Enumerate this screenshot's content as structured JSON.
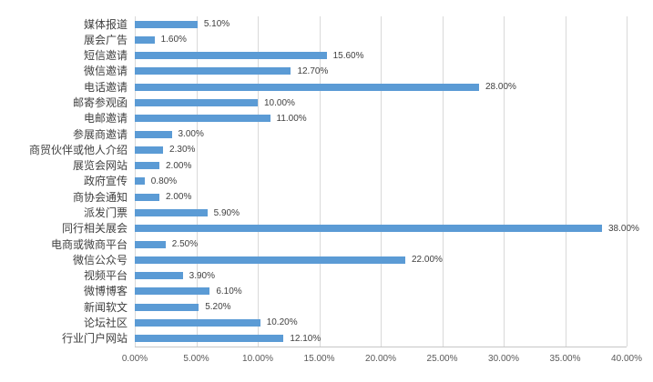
{
  "chart_data": {
    "type": "bar",
    "orientation": "horizontal",
    "title": "",
    "xlabel": "",
    "ylabel": "",
    "categories": [
      "媒体报道",
      "展会广告",
      "短信邀请",
      "微信邀请",
      "电话邀请",
      "邮寄参观函",
      "电邮邀请",
      "参展商邀请",
      "商贸伙伴或他人介绍",
      "展览会网站",
      "政府宣传",
      "商协会通知",
      "派发门票",
      "同行相关展会",
      "电商或微商平台",
      "微信公众号",
      "视频平台",
      "微博博客",
      "新闻软文",
      "论坛社区",
      "行业门户网站"
    ],
    "values": [
      5.1,
      1.6,
      15.6,
      12.7,
      28.0,
      10.0,
      11.0,
      3.0,
      2.3,
      2.0,
      0.8,
      2.0,
      5.9,
      38.0,
      2.5,
      22.0,
      3.9,
      6.1,
      5.2,
      10.2,
      12.1
    ],
    "data_labels": [
      "5.10%",
      "1.60%",
      "15.60%",
      "12.70%",
      "28.00%",
      "10.00%",
      "11.00%",
      "3.00%",
      "2.30%",
      "2.00%",
      "0.80%",
      "2.00%",
      "5.90%",
      "38.00%",
      "2.50%",
      "22.00%",
      "3.90%",
      "6.10%",
      "5.20%",
      "10.20%",
      "12.10%"
    ],
    "x_ticks": [
      "0.00%",
      "5.00%",
      "10.00%",
      "15.00%",
      "20.00%",
      "25.00%",
      "30.00%",
      "35.00%",
      "40.00%"
    ],
    "xlim": [
      0,
      40
    ],
    "grid": true,
    "legend": "none",
    "colors": {
      "bar": "#5b9bd5",
      "gridline": "#d9d9d9",
      "axis_line": "#c6c6c6",
      "label_text": "#404040",
      "tick_text": "#595959",
      "background": "#ffffff"
    }
  }
}
